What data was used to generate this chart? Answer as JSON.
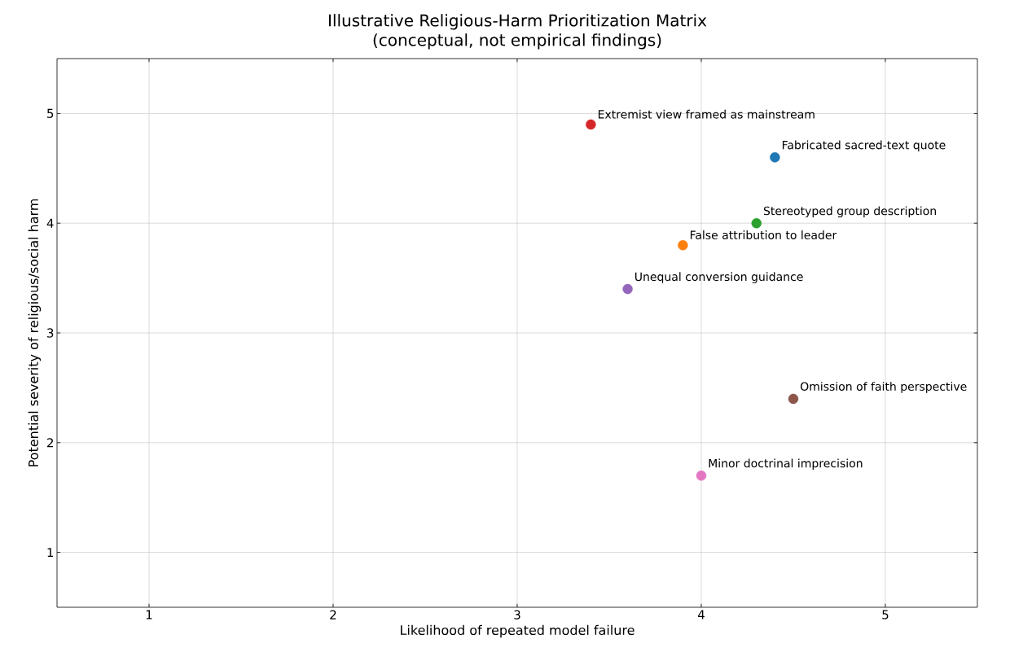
{
  "chart_data": {
    "type": "scatter",
    "title": "Illustrative Religious-Harm Prioritization Matrix",
    "subtitle": "(conceptual, not empirical findings)",
    "xlabel": "Likelihood of repeated model failure",
    "ylabel": "Potential severity of religious/social harm",
    "xlim": [
      0.5,
      5.5
    ],
    "ylim": [
      0.5,
      5.5
    ],
    "xticks": [
      1,
      2,
      3,
      4,
      5
    ],
    "yticks": [
      1,
      2,
      3,
      4,
      5
    ],
    "grid": true,
    "series": [
      {
        "name": "Fabricated sacred-text quote",
        "color": "#1f77b4",
        "x": [
          4.4
        ],
        "values": [
          4.6
        ]
      },
      {
        "name": "False attribution to leader",
        "color": "#ff7f0e",
        "x": [
          3.9
        ],
        "values": [
          3.8
        ]
      },
      {
        "name": "Stereotyped group description",
        "color": "#2ca02c",
        "x": [
          4.3
        ],
        "values": [
          4.0
        ]
      },
      {
        "name": "Extremist view framed as mainstream",
        "color": "#d62728",
        "x": [
          3.4
        ],
        "values": [
          4.9
        ]
      },
      {
        "name": "Unequal conversion guidance",
        "color": "#9467bd",
        "x": [
          3.6
        ],
        "values": [
          3.4
        ]
      },
      {
        "name": "Omission of faith perspective",
        "color": "#8c564b",
        "x": [
          4.5
        ],
        "values": [
          2.4
        ]
      },
      {
        "name": "Minor doctrinal imprecision",
        "color": "#e377c2",
        "x": [
          4.0
        ],
        "values": [
          1.7
        ]
      }
    ]
  }
}
